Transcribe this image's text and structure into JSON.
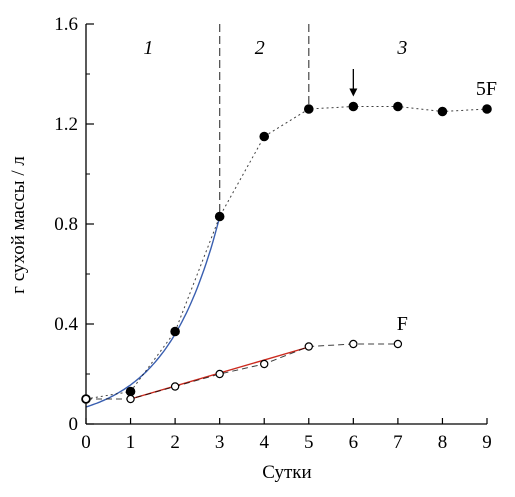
{
  "chart_data": {
    "type": "line",
    "xlabel": "Сутки",
    "ylabel": "г сухой массы / л",
    "xlim": [
      0,
      9
    ],
    "ylim": [
      0,
      1.6
    ],
    "x_ticks": [
      "0",
      "1",
      "2",
      "3",
      "4",
      "5",
      "6",
      "7",
      "8",
      "9"
    ],
    "y_ticks": [
      {
        "value": 0,
        "label": "0"
      },
      {
        "value": 0.4,
        "label": "0.4"
      },
      {
        "value": 0.8,
        "label": "0.8"
      },
      {
        "value": 1.2,
        "label": "1.2"
      },
      {
        "value": 1.6,
        "label": "1.6"
      }
    ],
    "grid": false,
    "phases": [
      {
        "label": "1",
        "x_center": 1.4
      },
      {
        "label": "2",
        "x_center": 3.9
      },
      {
        "label": "3",
        "x_center": 7.1
      }
    ],
    "phase_boundaries": [
      {
        "x": 3,
        "y_top": 1.6
      },
      {
        "x": 5,
        "y_top": 1.6
      }
    ],
    "series": [
      {
        "name": "5F",
        "marker": "filled-circle",
        "line_style": "dotted",
        "color": "#000000",
        "x": [
          0,
          1,
          2,
          3,
          4,
          5,
          6,
          7,
          8,
          9
        ],
        "y": [
          0.1,
          0.13,
          0.37,
          0.83,
          1.15,
          1.26,
          1.27,
          1.27,
          1.25,
          1.26
        ]
      },
      {
        "name": "F",
        "marker": "open-circle",
        "line_style": "dashed",
        "color": "#000000",
        "x": [
          0,
          1,
          2,
          3,
          4,
          5,
          6,
          7
        ],
        "y": [
          0.1,
          0.1,
          0.15,
          0.2,
          0.24,
          0.31,
          0.32,
          0.32
        ]
      }
    ],
    "fits": [
      {
        "for_series": "5F",
        "kind": "exponential",
        "color": "#3a5fb0",
        "x_range": [
          0,
          3
        ],
        "a": 0.068,
        "b": 0.833
      },
      {
        "for_series": "F",
        "kind": "linear",
        "color": "#cc2a1e",
        "x_range": [
          1,
          5
        ],
        "slope": 0.052,
        "intercept": 0.048
      }
    ],
    "annotations": [
      {
        "kind": "arrow-down",
        "x": 6,
        "y_from": 1.42,
        "y_to": 1.31
      }
    ]
  }
}
